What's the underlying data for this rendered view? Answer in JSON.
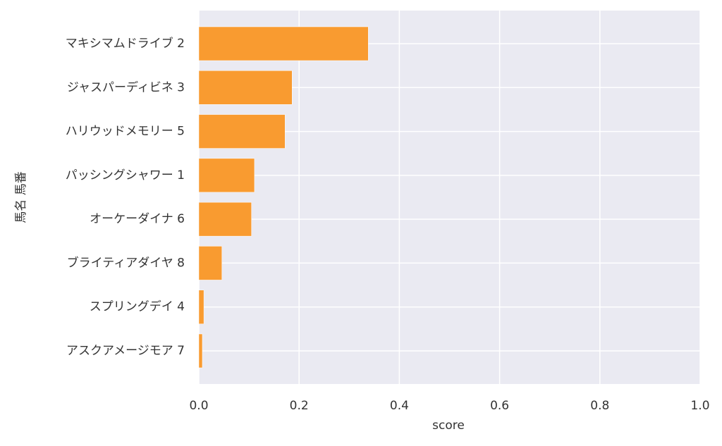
{
  "chart_data": {
    "type": "bar",
    "orientation": "horizontal",
    "xlabel": "score",
    "ylabel": "馬名 馬番",
    "categories": [
      "マキシマムドライブ 2",
      "ジャスパーディビネ 3",
      "ハリウッドメモリー 5",
      "パッシングシャワー 1",
      "オーケーダイナ 6",
      "ブライティアダイヤ 8",
      "スプリングデイ 4",
      "アスクアメージモア 7"
    ],
    "values": [
      0.338,
      0.186,
      0.172,
      0.111,
      0.105,
      0.046,
      0.01,
      0.007
    ],
    "color": "#f99b30",
    "xlim": [
      0,
      1
    ],
    "xticks": [
      {
        "value": 0,
        "label": "0.0"
      },
      0.2,
      0.4,
      0.6,
      0.8,
      {
        "value": 1,
        "label": "1.0"
      }
    ],
    "grid": true
  }
}
